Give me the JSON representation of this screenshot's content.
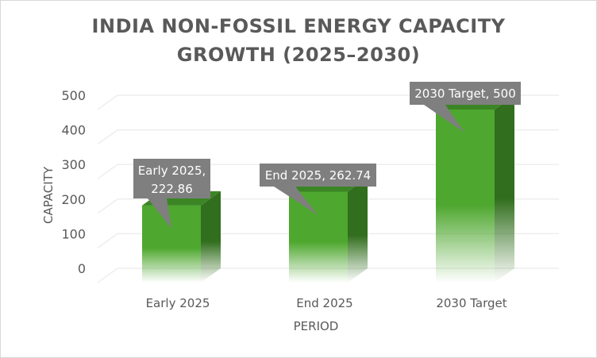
{
  "chart_data": {
    "type": "bar",
    "title": "INDIA NON-FOSSIL ENERGY CAPACITY GROWTH (2025–2030)",
    "title_lines": [
      "INDIA NON-FOSSIL ENERGY CAPACITY",
      "GROWTH (2025–2030)"
    ],
    "categories": [
      "Early 2025",
      "End 2025",
      "2030 Target"
    ],
    "values": [
      222.86,
      262.74,
      500
    ],
    "data_labels": [
      [
        "Early 2025,",
        "222.86"
      ],
      [
        "End 2025, 262.74"
      ],
      [
        "2030 Target, 500"
      ]
    ],
    "xlabel": "PERIOD",
    "ylabel": "CAPACITY",
    "ylim": [
      0,
      500
    ],
    "yticks": [
      0,
      100,
      200,
      300,
      400,
      500
    ],
    "grid": true,
    "legend": "none",
    "style": "3d-column",
    "colors": {
      "bar_front": "#4ea72e",
      "bar_side": "#316e1d",
      "bar_top": "#3b8525",
      "callout": "#7f7f7f",
      "grid": "#eeeeee",
      "text": "#595959"
    }
  }
}
